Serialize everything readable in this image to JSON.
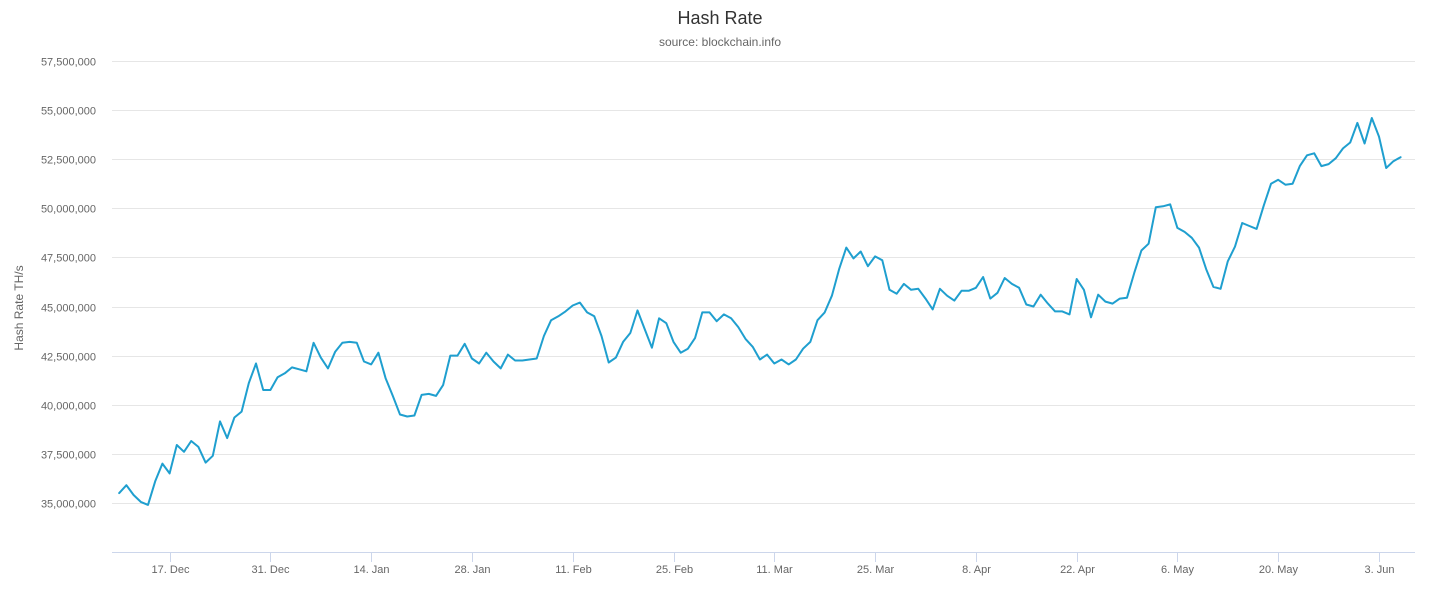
{
  "chart_data": {
    "type": "line",
    "title": "Hash Rate",
    "subtitle": "source: blockchain.info",
    "ylabel": "Hash Rate TH/s",
    "xlabel": "",
    "ylim": [
      32500000,
      57500000
    ],
    "yticks": [
      35000000,
      37500000,
      40000000,
      42500000,
      45000000,
      47500000,
      50000000,
      52500000,
      55000000,
      57500000
    ],
    "ytick_labels": [
      "35,000,000",
      "37,500,000",
      "40,000,000",
      "42,500,000",
      "45,000,000",
      "47,500,000",
      "50,000,000",
      "52,500,000",
      "55,000,000",
      "57,500,000"
    ],
    "xlim": [
      "2018-12-09",
      "2019-06-08"
    ],
    "xticks": [
      "2018-12-17",
      "2018-12-31",
      "2019-01-14",
      "2019-01-28",
      "2019-02-11",
      "2019-02-25",
      "2019-03-11",
      "2019-03-25",
      "2019-04-08",
      "2019-04-22",
      "2019-05-06",
      "2019-05-20",
      "2019-06-03"
    ],
    "xtick_labels": [
      "17. Dec",
      "31. Dec",
      "14. Jan",
      "28. Jan",
      "11. Feb",
      "25. Feb",
      "11. Mar",
      "25. Mar",
      "8. Apr",
      "22. Apr",
      "6. May",
      "20. May",
      "3. Jun"
    ],
    "grid": true,
    "legend": false,
    "color": "#1f9fcf",
    "series": [
      {
        "x": [
          "2018-12-10",
          "2018-12-11",
          "2018-12-12",
          "2018-12-13",
          "2018-12-14",
          "2018-12-15",
          "2018-12-16",
          "2018-12-17",
          "2018-12-18",
          "2018-12-19",
          "2018-12-20",
          "2018-12-21",
          "2018-12-22",
          "2018-12-23",
          "2018-12-24",
          "2018-12-25",
          "2018-12-26",
          "2018-12-27",
          "2018-12-28",
          "2018-12-29",
          "2018-12-30",
          "2018-12-31",
          "2019-01-01",
          "2019-01-02",
          "2019-01-03",
          "2019-01-04",
          "2019-01-05",
          "2019-01-06",
          "2019-01-07",
          "2019-01-08",
          "2019-01-09",
          "2019-01-10",
          "2019-01-11",
          "2019-01-12",
          "2019-01-13",
          "2019-01-14",
          "2019-01-15",
          "2019-01-16",
          "2019-01-17",
          "2019-01-18",
          "2019-01-19",
          "2019-01-20",
          "2019-01-21",
          "2019-01-22",
          "2019-01-23",
          "2019-01-24",
          "2019-01-25",
          "2019-01-26",
          "2019-01-27",
          "2019-01-28",
          "2019-01-29",
          "2019-01-30",
          "2019-01-31",
          "2019-02-01",
          "2019-02-02",
          "2019-02-03",
          "2019-02-04",
          "2019-02-05",
          "2019-02-06",
          "2019-02-07",
          "2019-02-08",
          "2019-02-09",
          "2019-02-10",
          "2019-02-11",
          "2019-02-12",
          "2019-02-13",
          "2019-02-14",
          "2019-02-15",
          "2019-02-16",
          "2019-02-17",
          "2019-02-18",
          "2019-02-19",
          "2019-02-20",
          "2019-02-21",
          "2019-02-22",
          "2019-02-23",
          "2019-02-24",
          "2019-02-25",
          "2019-02-26",
          "2019-02-27",
          "2019-02-28",
          "2019-03-01",
          "2019-03-02",
          "2019-03-03",
          "2019-03-04",
          "2019-03-05",
          "2019-03-06",
          "2019-03-07",
          "2019-03-08",
          "2019-03-09",
          "2019-03-10",
          "2019-03-11",
          "2019-03-12",
          "2019-03-13",
          "2019-03-14",
          "2019-03-15",
          "2019-03-16",
          "2019-03-17",
          "2019-03-18",
          "2019-03-19",
          "2019-03-20",
          "2019-03-21",
          "2019-03-22",
          "2019-03-23",
          "2019-03-24",
          "2019-03-25",
          "2019-03-26",
          "2019-03-27",
          "2019-03-28",
          "2019-03-29",
          "2019-03-30",
          "2019-03-31",
          "2019-04-01",
          "2019-04-02",
          "2019-04-03",
          "2019-04-04",
          "2019-04-05",
          "2019-04-06",
          "2019-04-07",
          "2019-04-08",
          "2019-04-09",
          "2019-04-10",
          "2019-04-11",
          "2019-04-12",
          "2019-04-13",
          "2019-04-14",
          "2019-04-15",
          "2019-04-16",
          "2019-04-17",
          "2019-04-18",
          "2019-04-19",
          "2019-04-20",
          "2019-04-21",
          "2019-04-22",
          "2019-04-23",
          "2019-04-24",
          "2019-04-25",
          "2019-04-26",
          "2019-04-27",
          "2019-04-28",
          "2019-04-29",
          "2019-04-30",
          "2019-05-01",
          "2019-05-02",
          "2019-05-03",
          "2019-05-04",
          "2019-05-05",
          "2019-05-06",
          "2019-05-07",
          "2019-05-08",
          "2019-05-09",
          "2019-05-10",
          "2019-05-11",
          "2019-05-12",
          "2019-05-13",
          "2019-05-14",
          "2019-05-15",
          "2019-05-16",
          "2019-05-17",
          "2019-05-18",
          "2019-05-19",
          "2019-05-20",
          "2019-05-21",
          "2019-05-22",
          "2019-05-23",
          "2019-05-24",
          "2019-05-25",
          "2019-05-26",
          "2019-05-27",
          "2019-05-28",
          "2019-05-29",
          "2019-05-30",
          "2019-05-31",
          "2019-06-01",
          "2019-06-02",
          "2019-06-03",
          "2019-06-04",
          "2019-06-05",
          "2019-06-06"
        ],
        "values": [
          35500000,
          35900000,
          35400000,
          35050000,
          34900000,
          36100000,
          37000000,
          36500000,
          37950000,
          37600000,
          38150000,
          37850000,
          37050000,
          37400000,
          39150000,
          38300000,
          39350000,
          39650000,
          41100000,
          42100000,
          40750000,
          40750000,
          41400000,
          41600000,
          41900000,
          41800000,
          41700000,
          43150000,
          42400000,
          41850000,
          42700000,
          43150000,
          43200000,
          43150000,
          42200000,
          42050000,
          42650000,
          41350000,
          40450000,
          39500000,
          39400000,
          39450000,
          40500000,
          40550000,
          40450000,
          41000000,
          42500000,
          42500000,
          43100000,
          42350000,
          42100000,
          42650000,
          42200000,
          41850000,
          42550000,
          42250000,
          42250000,
          42300000,
          42350000,
          43500000,
          44300000,
          44500000,
          44750000,
          45050000,
          45200000,
          44700000,
          44500000,
          43500000,
          42150000,
          42400000,
          43200000,
          43650000,
          44800000,
          43850000,
          42900000,
          44400000,
          44150000,
          43200000,
          42650000,
          42850000,
          43400000,
          44700000,
          44700000,
          44250000,
          44600000,
          44400000,
          43950000,
          43350000,
          42950000,
          42300000,
          42550000,
          42100000,
          42300000,
          42050000,
          42300000,
          42850000,
          43200000,
          44300000,
          44700000,
          45550000,
          46900000,
          48000000,
          47450000,
          47800000,
          47050000,
          47550000,
          47350000,
          45850000,
          45650000,
          46150000,
          45850000,
          45900000,
          45400000,
          44850000,
          45900000,
          45550000,
          45300000,
          45800000,
          45800000,
          45950000,
          46500000,
          45400000,
          45700000,
          46450000,
          46150000,
          45950000,
          45100000,
          45000000,
          45600000,
          45150000,
          44750000,
          44750000,
          44600000,
          46400000,
          45850000,
          44450000,
          45600000,
          45250000,
          45150000,
          45400000,
          45450000,
          46700000,
          47850000,
          48200000,
          50050000,
          50100000,
          50200000,
          49000000,
          48800000,
          48500000,
          48000000,
          46900000,
          46000000,
          45900000,
          47300000,
          48050000,
          49250000,
          49100000,
          48950000,
          50150000,
          51250000,
          51450000,
          51200000,
          51250000,
          52150000,
          52700000,
          52800000,
          52150000,
          52250000,
          52550000,
          53050000,
          53350000,
          54350000,
          53300000,
          54600000,
          53650000,
          52050000,
          52400000,
          52600000
        ]
      }
    ]
  }
}
